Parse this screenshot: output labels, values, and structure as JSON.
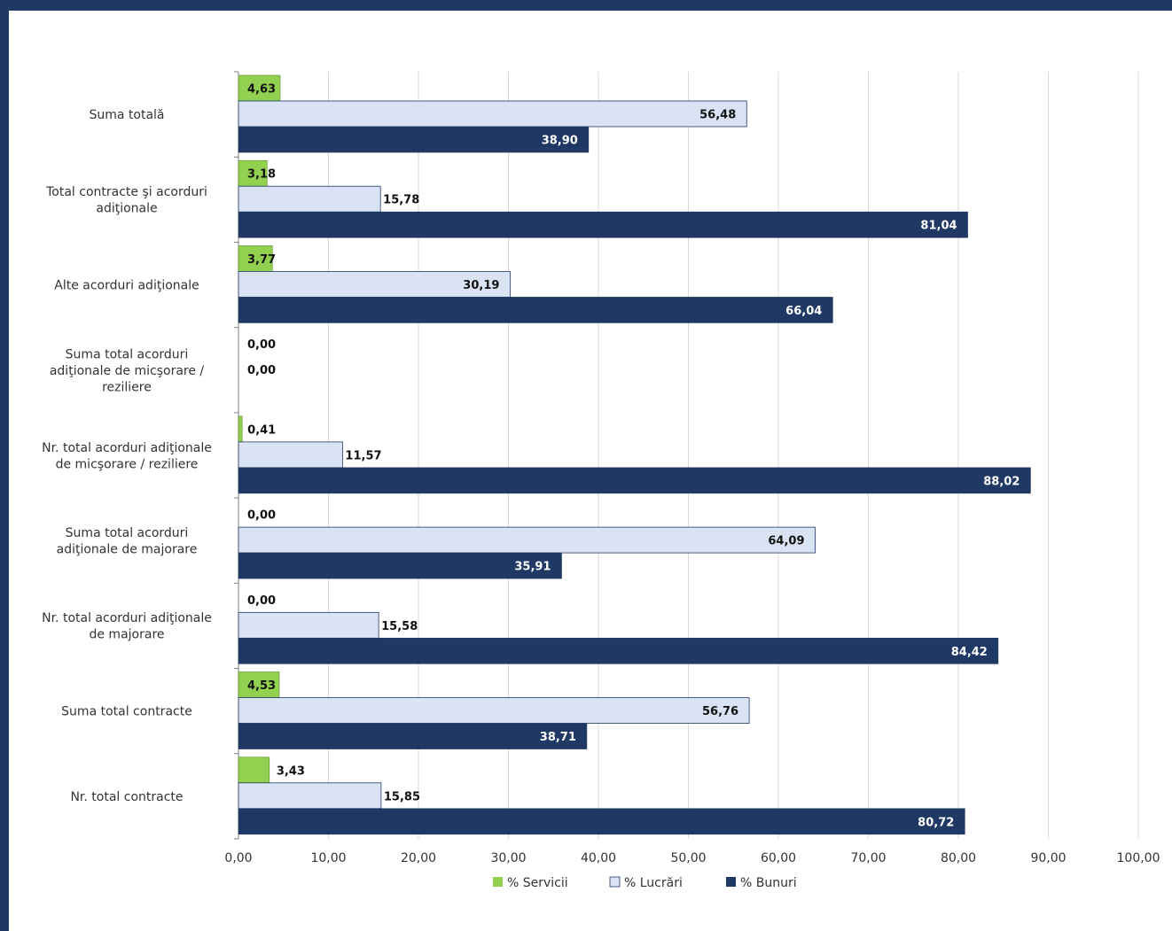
{
  "colors": {
    "frame": "#1f3864",
    "servicii": "#92d050",
    "lucrari": "#dae3f3",
    "bunuri": "#1f3864",
    "grid": "#d9d9d9",
    "axis": "#808080"
  },
  "chart_data": {
    "type": "bar",
    "orientation": "horizontal",
    "title": "",
    "xlabel": "",
    "ylabel": "",
    "xlim": [
      0,
      100
    ],
    "x_ticks": [
      "0,00",
      "10,00",
      "20,00",
      "30,00",
      "40,00",
      "50,00",
      "60,00",
      "70,00",
      "80,00",
      "90,00",
      "100,00"
    ],
    "grid": true,
    "legend_position": "bottom",
    "categories": [
      [
        "Suma totală"
      ],
      [
        "Total contracte şi acorduri",
        "adiţionale"
      ],
      [
        "Alte acorduri adiţionale"
      ],
      [
        "Suma total acorduri",
        "adiţionale de micşorare /",
        "reziliere"
      ],
      [
        "Nr. total acorduri adiţionale",
        "de micşorare / reziliere"
      ],
      [
        "Suma total acorduri",
        "adiţionale de majorare"
      ],
      [
        "Nr. total acorduri adiţionale",
        "de majorare"
      ],
      [
        "Suma total contracte"
      ],
      [
        "Nr. total contracte"
      ]
    ],
    "series": [
      {
        "name": "% Servicii",
        "color": "#92d050",
        "values": [
          4.63,
          3.18,
          3.77,
          0.0,
          0.41,
          0.0,
          0.0,
          4.53,
          3.43
        ],
        "labels": [
          "4,63",
          "3,18",
          "3,77",
          "0,00",
          "0,41",
          "0,00",
          "0,00",
          "4,53",
          "3,43"
        ]
      },
      {
        "name": "% Lucrări",
        "color": "#dae3f3",
        "values": [
          56.48,
          15.78,
          30.19,
          0.0,
          11.57,
          64.09,
          15.58,
          56.76,
          15.85
        ],
        "labels": [
          "56,48",
          "15,78",
          "30,19",
          "0,00",
          "11,57",
          "64,09",
          "15,58",
          "56,76",
          "15,85"
        ]
      },
      {
        "name": "% Bunuri",
        "color": "#1f3864",
        "values": [
          38.9,
          81.04,
          66.04,
          null,
          88.02,
          35.91,
          84.42,
          38.71,
          80.72
        ],
        "labels": [
          "38,90",
          "81,04",
          "66,04",
          "",
          "88,02",
          "35,91",
          "84,42",
          "38,71",
          "80,72"
        ]
      }
    ]
  }
}
